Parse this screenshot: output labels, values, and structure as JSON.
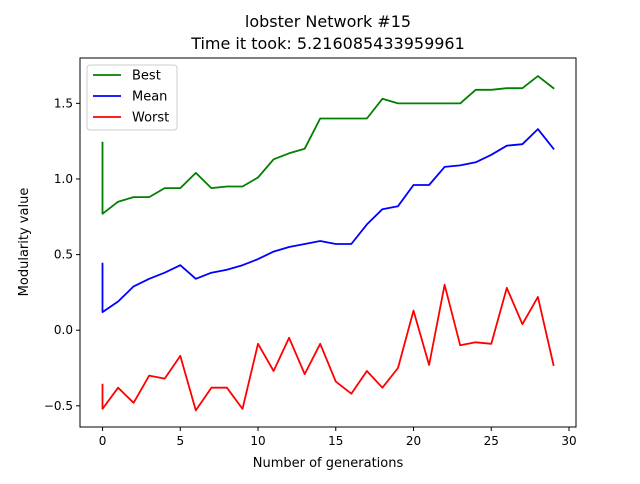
{
  "chart_data": {
    "type": "line",
    "title": "lobster Network #15",
    "subtitle": "Time it took: 5.216085433959961",
    "xlabel": "Number of generations",
    "ylabel": "Modularity value",
    "xlim": [
      -1.45,
      30.45
    ],
    "ylim": [
      -0.64,
      1.8
    ],
    "xticks": [
      0,
      5,
      10,
      15,
      20,
      25,
      30
    ],
    "yticks": [
      -0.5,
      0.0,
      0.5,
      1.0,
      1.5
    ],
    "ytick_labels": [
      "−0.5",
      "0.0",
      "0.5",
      "1.0",
      "1.5"
    ],
    "grid": false,
    "legend": "upper-left",
    "series": [
      {
        "name": "Best",
        "color": "#008000",
        "points": [
          [
            0,
            1.24
          ],
          [
            0,
            0.77
          ],
          [
            1,
            0.85
          ],
          [
            2,
            0.88
          ],
          [
            3,
            0.88
          ],
          [
            4,
            0.94
          ],
          [
            5,
            0.94
          ],
          [
            6,
            1.04
          ],
          [
            7,
            0.94
          ],
          [
            8,
            0.95
          ],
          [
            9,
            0.95
          ],
          [
            10,
            1.01
          ],
          [
            11,
            1.13
          ],
          [
            12,
            1.17
          ],
          [
            13,
            1.2
          ],
          [
            14,
            1.4
          ],
          [
            15,
            1.4
          ],
          [
            16,
            1.4
          ],
          [
            17,
            1.4
          ],
          [
            18,
            1.53
          ],
          [
            19,
            1.5
          ],
          [
            20,
            1.5
          ],
          [
            21,
            1.5
          ],
          [
            22,
            1.5
          ],
          [
            23,
            1.5
          ],
          [
            24,
            1.59
          ],
          [
            25,
            1.59
          ],
          [
            26,
            1.6
          ],
          [
            27,
            1.6
          ],
          [
            28,
            1.68
          ],
          [
            29,
            1.6
          ]
        ]
      },
      {
        "name": "Mean",
        "color": "#0000ff",
        "points": [
          [
            0,
            0.44
          ],
          [
            0,
            0.12
          ],
          [
            1,
            0.19
          ],
          [
            2,
            0.29
          ],
          [
            3,
            0.34
          ],
          [
            4,
            0.38
          ],
          [
            5,
            0.43
          ],
          [
            6,
            0.34
          ],
          [
            7,
            0.38
          ],
          [
            8,
            0.4
          ],
          [
            9,
            0.43
          ],
          [
            10,
            0.47
          ],
          [
            11,
            0.52
          ],
          [
            12,
            0.55
          ],
          [
            13,
            0.57
          ],
          [
            14,
            0.59
          ],
          [
            15,
            0.57
          ],
          [
            16,
            0.57
          ],
          [
            17,
            0.7
          ],
          [
            18,
            0.8
          ],
          [
            19,
            0.82
          ],
          [
            20,
            0.96
          ],
          [
            21,
            0.96
          ],
          [
            22,
            1.08
          ],
          [
            23,
            1.09
          ],
          [
            24,
            1.11
          ],
          [
            25,
            1.16
          ],
          [
            26,
            1.22
          ],
          [
            27,
            1.23
          ],
          [
            28,
            1.33
          ],
          [
            29,
            1.2
          ]
        ]
      },
      {
        "name": "Worst",
        "color": "#ff0000",
        "points": [
          [
            0,
            -0.36
          ],
          [
            0,
            -0.52
          ],
          [
            1,
            -0.38
          ],
          [
            2,
            -0.48
          ],
          [
            3,
            -0.3
          ],
          [
            4,
            -0.32
          ],
          [
            5,
            -0.17
          ],
          [
            6,
            -0.53
          ],
          [
            7,
            -0.38
          ],
          [
            8,
            -0.38
          ],
          [
            9,
            -0.52
          ],
          [
            10,
            -0.09
          ],
          [
            11,
            -0.27
          ],
          [
            12,
            -0.05
          ],
          [
            13,
            -0.29
          ],
          [
            14,
            -0.09
          ],
          [
            15,
            -0.34
          ],
          [
            16,
            -0.42
          ],
          [
            17,
            -0.27
          ],
          [
            18,
            -0.38
          ],
          [
            19,
            -0.25
          ],
          [
            20,
            0.13
          ],
          [
            21,
            -0.23
          ],
          [
            22,
            0.3
          ],
          [
            23,
            -0.1
          ],
          [
            24,
            -0.08
          ],
          [
            25,
            -0.09
          ],
          [
            26,
            0.28
          ],
          [
            27,
            0.04
          ],
          [
            28,
            0.22
          ],
          [
            29,
            -0.23
          ]
        ]
      }
    ]
  }
}
